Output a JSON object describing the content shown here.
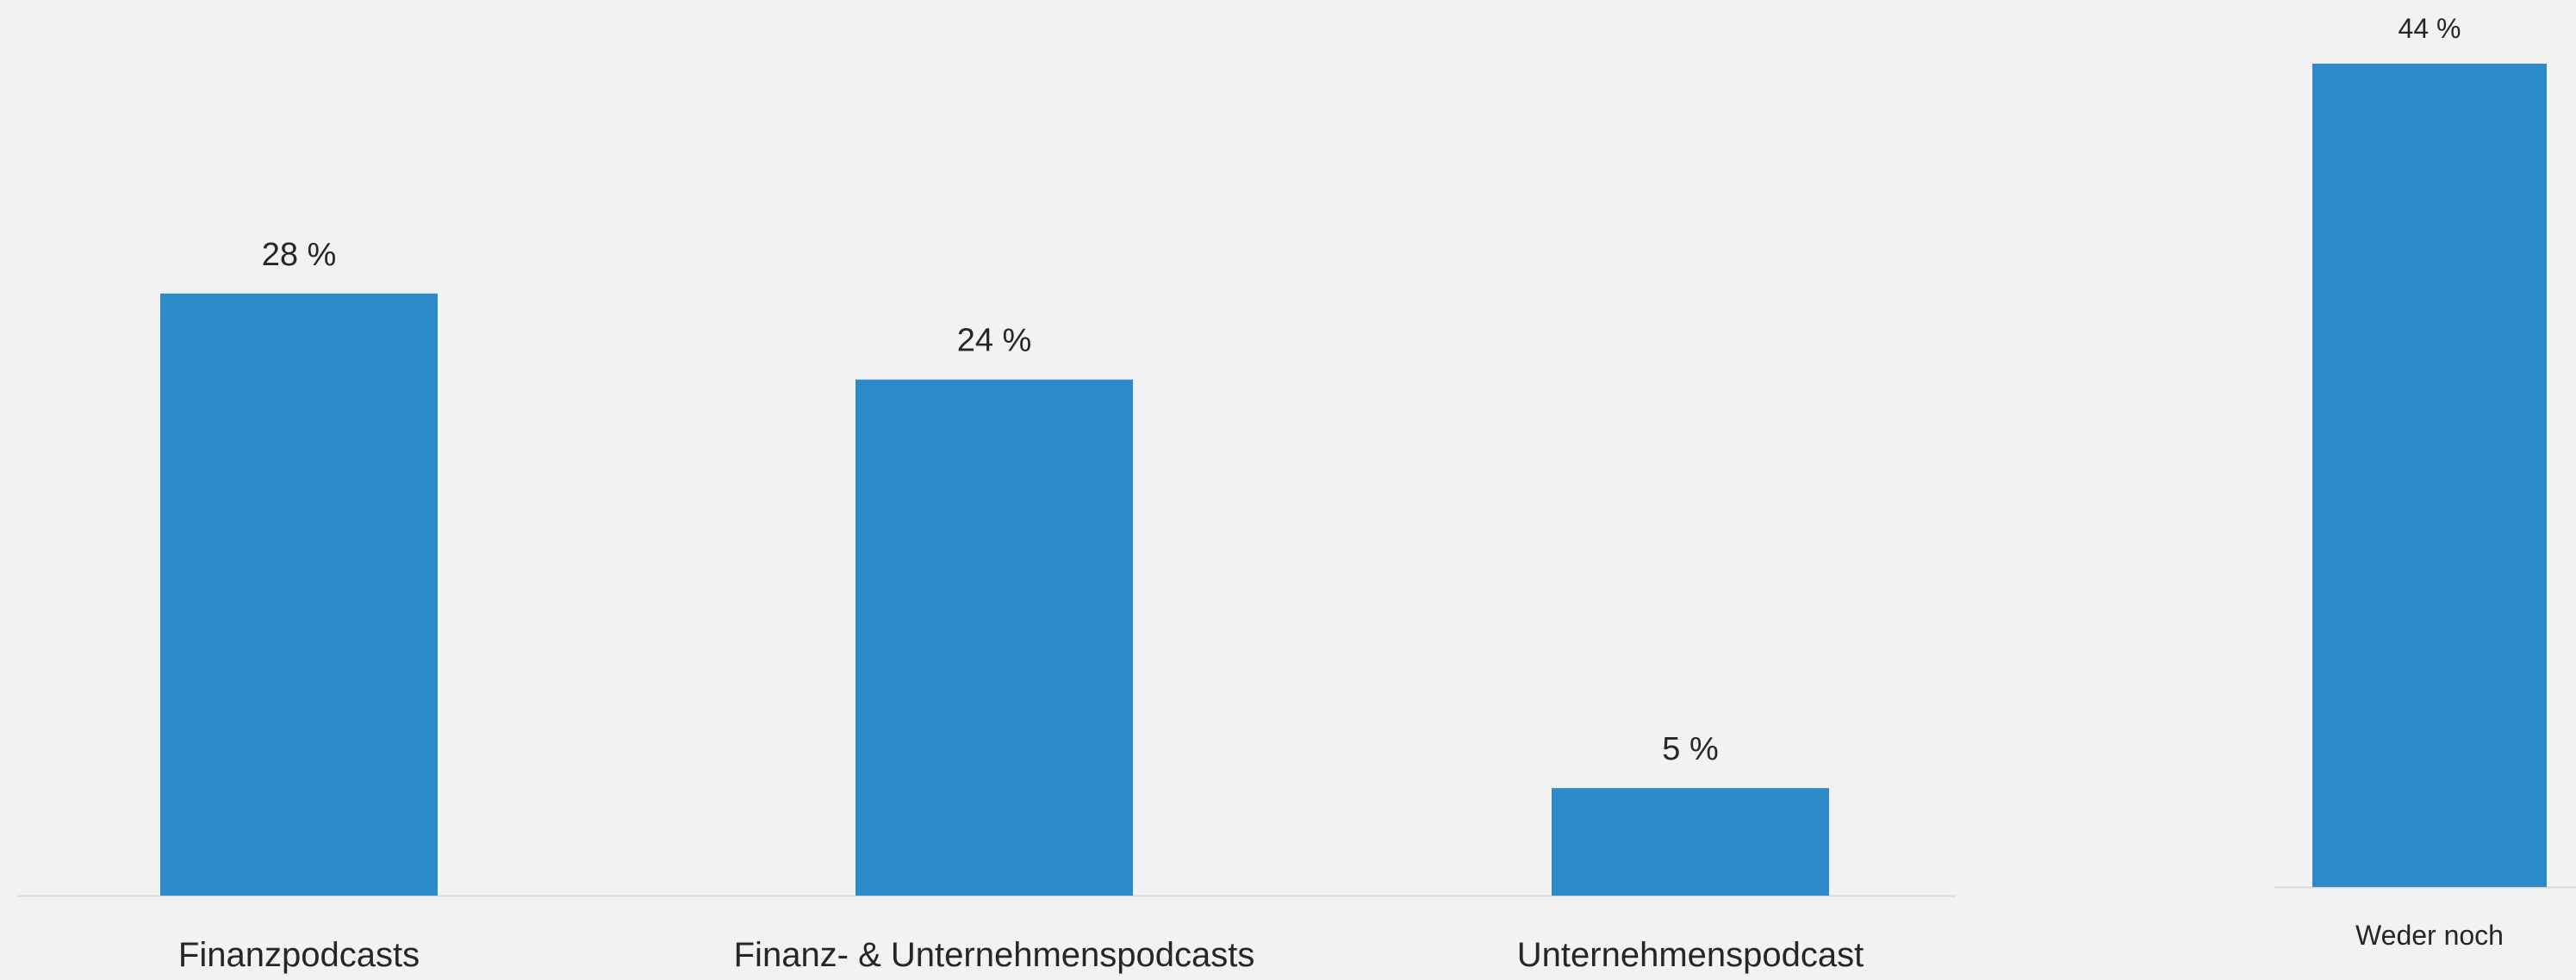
{
  "chart_data": [
    {
      "type": "bar",
      "categories": [
        "Finanzpodcasts",
        "Finanz- & Unternehmenspodcasts",
        "Unternehmenspodcast"
      ],
      "values": [
        28,
        24,
        5
      ],
      "value_labels": [
        "28 %",
        "24 %",
        "5 %"
      ],
      "title": "",
      "xlabel": "",
      "ylabel": "",
      "ylim": [
        0,
        44
      ],
      "grid": false,
      "legend": "none",
      "bar_color": "#2e8bc9",
      "axis_color": "#d9d9d9"
    },
    {
      "type": "bar",
      "categories": [
        "Weder noch"
      ],
      "values": [
        44
      ],
      "value_labels": [
        "44 %"
      ],
      "title": "",
      "xlabel": "",
      "ylabel": "",
      "ylim": [
        0,
        44
      ],
      "grid": false,
      "legend": "none",
      "bar_color": "#2e8bc9",
      "axis_color": "#d9d9d9"
    }
  ]
}
